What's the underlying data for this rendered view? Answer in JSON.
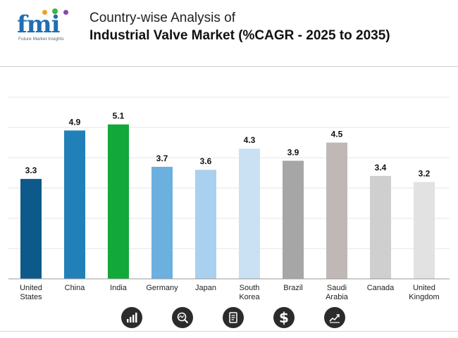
{
  "logo": {
    "wordmark": "fmi",
    "tagline": "Future Market Insights"
  },
  "header": {
    "title_line1": "Country-wise Analysis of",
    "title_line2": "Industrial Valve Market (%CAGR - 2025 to 2035)"
  },
  "chart_data": {
    "type": "bar",
    "title": "Country-wise Analysis of Industrial Valve Market (%CAGR - 2025 to 2035)",
    "xlabel": "",
    "ylabel": "",
    "ylim": [
      0,
      6
    ],
    "grid": true,
    "categories": [
      [
        "United",
        "States"
      ],
      [
        "China"
      ],
      [
        "India"
      ],
      [
        "Germany"
      ],
      [
        "Japan"
      ],
      [
        "South",
        "Korea"
      ],
      [
        "Brazil"
      ],
      [
        "Saudi",
        "Arabia"
      ],
      [
        "Canada"
      ],
      [
        "United",
        "Kingdom"
      ]
    ],
    "values": [
      3.3,
      4.9,
      5.1,
      3.7,
      3.6,
      4.3,
      3.9,
      4.5,
      3.4,
      3.2
    ],
    "colors": [
      "#0d5a8a",
      "#2280b8",
      "#12a83a",
      "#6bb0de",
      "#a9d0ef",
      "#c9e1f3",
      "#a6a6a6",
      "#bfb8b6",
      "#cfcfcf",
      "#e2e2e2"
    ]
  },
  "footer_icons": [
    "bar-chart-icon",
    "magnifier-chart-icon",
    "document-icon",
    "dollar-icon",
    "growth-chart-icon"
  ],
  "icon_glyphs": {
    "dollar": "$"
  }
}
